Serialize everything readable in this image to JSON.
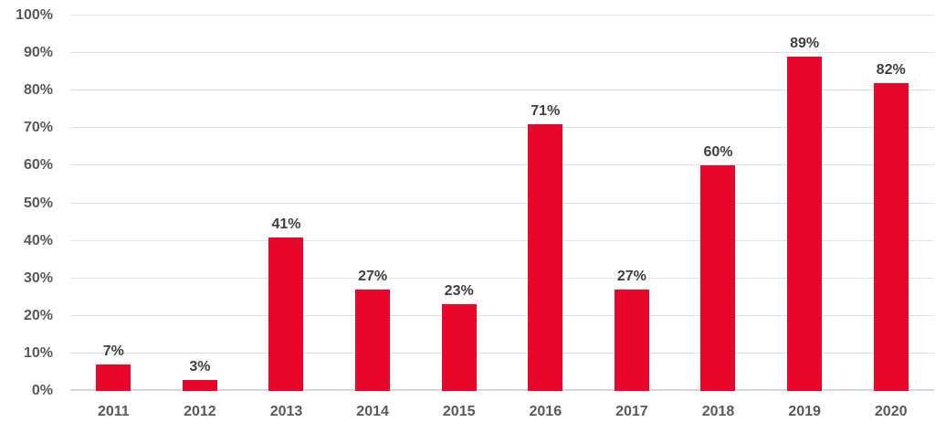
{
  "chart_data": {
    "type": "bar",
    "title": "",
    "xlabel": "",
    "ylabel": "",
    "categories": [
      "2011",
      "2012",
      "2013",
      "2014",
      "2015",
      "2016",
      "2017",
      "2018",
      "2019",
      "2020"
    ],
    "values": [
      7,
      3,
      41,
      27,
      23,
      71,
      27,
      60,
      89,
      82
    ],
    "data_labels": [
      "7%",
      "3%",
      "41%",
      "27%",
      "23%",
      "71%",
      "27%",
      "60%",
      "89%",
      "82%"
    ],
    "ytick_labels": [
      "0%",
      "10%",
      "20%",
      "30%",
      "40%",
      "50%",
      "60%",
      "70%",
      "80%",
      "90%",
      "100%"
    ],
    "ylim": [
      0,
      100
    ],
    "ytick_step": 10,
    "grid": true,
    "legend": false,
    "colors": {
      "bar": "#e9062b",
      "data_label": "#404040",
      "axis_text": "#595959",
      "gridline": "#e2e2e2",
      "axis_line": "#d6d6d6",
      "background": "#ffffff"
    }
  }
}
